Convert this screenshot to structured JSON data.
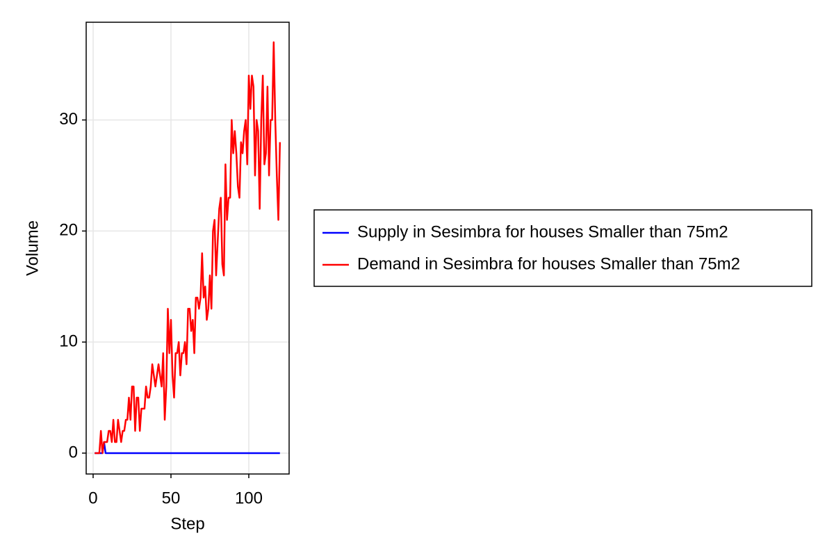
{
  "chart_data": {
    "type": "line",
    "x_label": "Step",
    "y_label": "Volume",
    "x": [
      1,
      2,
      3,
      4,
      5,
      6,
      7,
      8,
      9,
      10,
      11,
      12,
      13,
      14,
      15,
      16,
      17,
      18,
      19,
      20,
      21,
      22,
      23,
      24,
      25,
      26,
      27,
      28,
      29,
      30,
      31,
      32,
      33,
      34,
      35,
      36,
      37,
      38,
      39,
      40,
      41,
      42,
      43,
      44,
      45,
      46,
      47,
      48,
      49,
      50,
      51,
      52,
      53,
      54,
      55,
      56,
      57,
      58,
      59,
      60,
      61,
      62,
      63,
      64,
      65,
      66,
      67,
      68,
      69,
      70,
      71,
      72,
      73,
      74,
      75,
      76,
      77,
      78,
      79,
      80,
      81,
      82,
      83,
      84,
      85,
      86,
      87,
      88,
      89,
      90,
      91,
      92,
      93,
      94,
      95,
      96,
      97,
      98,
      99,
      100,
      101,
      102,
      103,
      104,
      105,
      106,
      107,
      108,
      109,
      110,
      111,
      112,
      113,
      114,
      115,
      116,
      117,
      118,
      119,
      120
    ],
    "series": [
      {
        "name": "Supply in Sesimbra for houses Smaller than 75m2",
        "color": "#0000ff",
        "values": [
          0,
          0,
          0,
          0,
          0,
          0,
          1,
          0,
          0,
          0,
          0,
          0,
          0,
          0,
          0,
          0,
          0,
          0,
          0,
          0,
          0,
          0,
          0,
          0,
          0,
          0,
          0,
          0,
          0,
          0,
          0,
          0,
          0,
          0,
          0,
          0,
          0,
          0,
          0,
          0,
          0,
          0,
          0,
          0,
          0,
          0,
          0,
          0,
          0,
          0,
          0,
          0,
          0,
          0,
          0,
          0,
          0,
          0,
          0,
          0,
          0,
          0,
          0,
          0,
          0,
          0,
          0,
          0,
          0,
          0,
          0,
          0,
          0,
          0,
          0,
          0,
          0,
          0,
          0,
          0,
          0,
          0,
          0,
          0,
          0,
          0,
          0,
          0,
          0,
          0,
          0,
          0,
          0,
          0,
          0,
          0,
          0,
          0,
          0,
          0,
          0,
          0,
          0,
          0,
          0,
          0,
          0,
          0,
          0,
          0,
          0,
          0,
          0,
          0,
          0,
          0,
          0,
          0,
          0,
          0
        ]
      },
      {
        "name": "Demand in Sesimbra for houses Smaller than 75m2",
        "color": "#ff0000",
        "values": [
          0,
          0,
          0,
          0,
          2,
          0,
          1,
          1,
          1,
          2,
          2,
          1,
          3,
          1,
          1,
          3,
          2,
          1,
          2,
          2,
          3,
          3,
          5,
          3,
          6,
          6,
          2,
          5,
          5,
          2,
          4,
          4,
          4,
          6,
          5,
          5,
          6,
          8,
          7,
          6,
          7,
          8,
          7,
          6,
          9,
          3,
          6,
          13,
          9,
          12,
          7,
          5,
          9,
          9,
          10,
          7,
          9,
          9,
          10,
          8,
          13,
          13,
          11,
          12,
          9,
          14,
          14,
          13,
          14,
          18,
          14,
          15,
          12,
          13,
          16,
          13,
          20,
          21,
          16,
          19,
          22,
          23,
          17,
          16,
          26,
          21,
          23,
          23,
          30,
          27,
          29,
          27,
          24,
          23,
          28,
          27,
          29,
          30,
          26,
          34,
          31,
          34,
          33,
          25,
          30,
          29,
          22,
          30,
          34,
          26,
          27,
          33,
          25,
          30,
          30,
          37,
          30,
          25,
          21,
          28
        ]
      }
    ],
    "xlim": [
      -4.46,
      125.9
    ],
    "ylim": [
      -1.88,
      38.8
    ],
    "xticks": [
      0,
      50,
      100
    ],
    "yticks": [
      0,
      10,
      20,
      30
    ],
    "grid": true,
    "legend_position": "right"
  }
}
